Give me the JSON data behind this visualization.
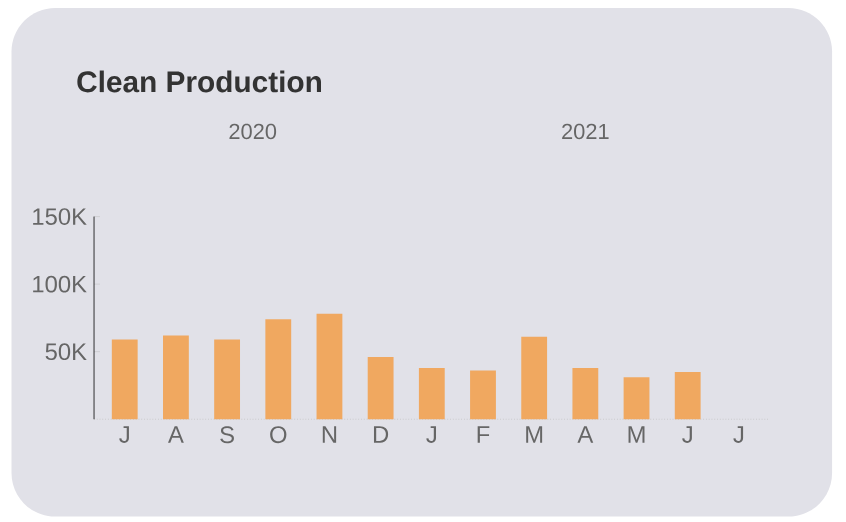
{
  "chart_data": {
    "type": "bar",
    "title": "Clean Production",
    "annotations": [
      "2020",
      "2021"
    ],
    "categories": [
      "J",
      "A",
      "S",
      "O",
      "N",
      "D",
      "J",
      "F",
      "M",
      "A",
      "M",
      "J",
      "J"
    ],
    "values": [
      59000,
      62000,
      59000,
      74000,
      78000,
      46000,
      38000,
      36000,
      61000,
      38000,
      31000,
      35000,
      null
    ],
    "color": "#f0a860",
    "ylim": [
      0,
      150000
    ],
    "yticks": [
      {
        "value": 50000,
        "label": "50K"
      },
      {
        "value": 100000,
        "label": "100K"
      },
      {
        "value": 150000,
        "label": "150K"
      }
    ]
  }
}
